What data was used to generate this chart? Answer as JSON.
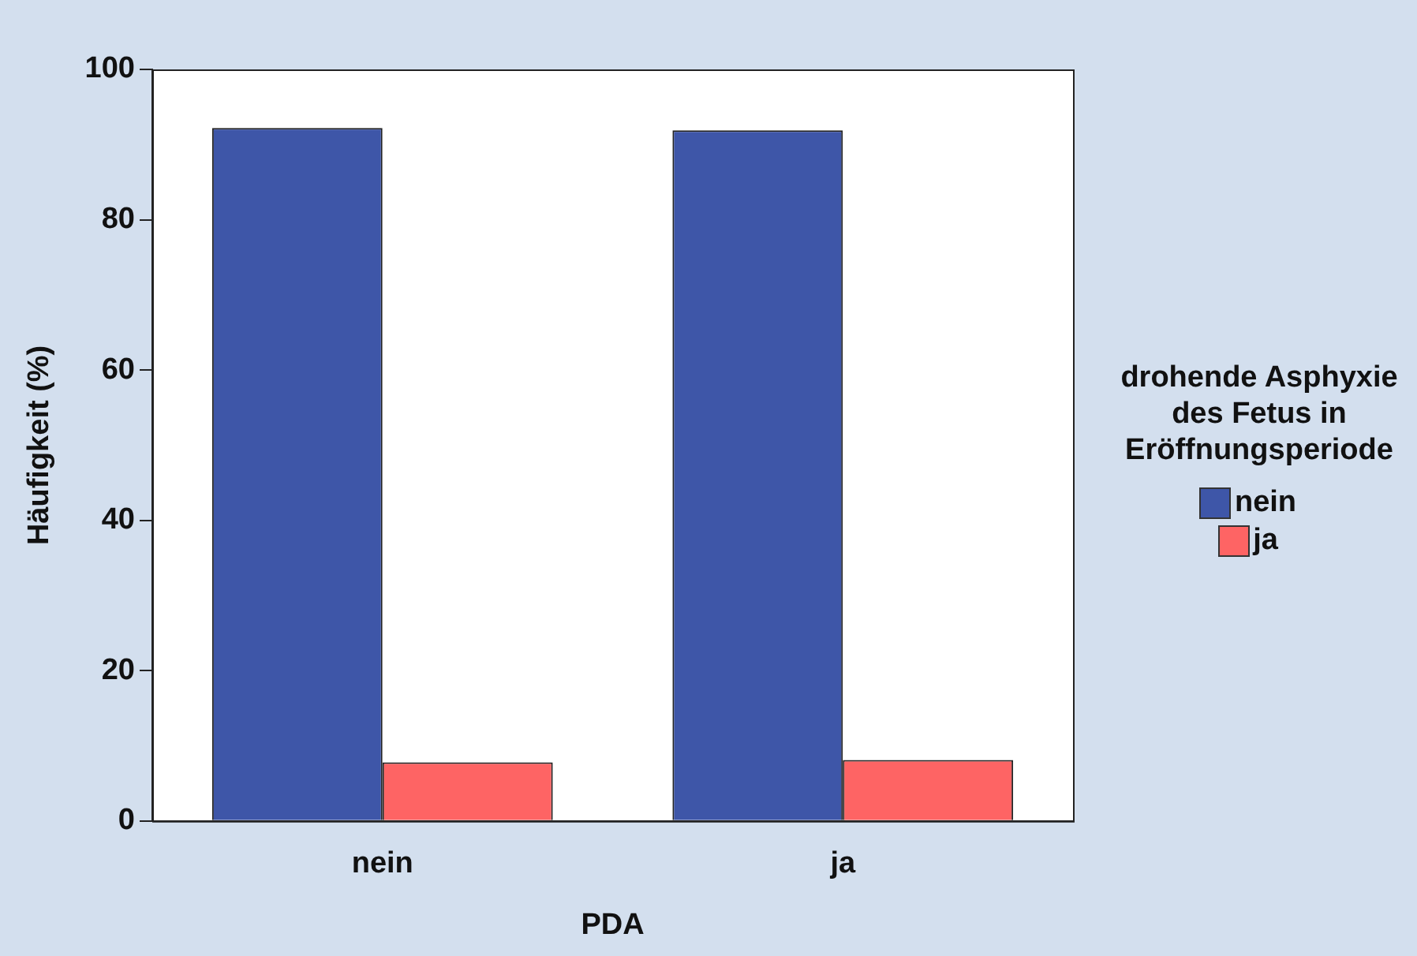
{
  "chart_data": {
    "type": "bar",
    "xlabel": "PDA",
    "ylabel": "Häufigkeit (%)",
    "legend_title": "drohende Asphyxie des Fetus in Eröffnungsperiode",
    "categories": [
      "nein",
      "ja"
    ],
    "series": [
      {
        "name": "nein",
        "color": "#3e56a8",
        "values": [
          92.2,
          91.9
        ]
      },
      {
        "name": "ja",
        "color": "#fe6464",
        "values": [
          7.8,
          8.1
        ]
      }
    ],
    "ylim": [
      0,
      100
    ],
    "yticks": [
      0,
      20,
      40,
      60,
      80,
      100
    ],
    "grid": false,
    "legend": "right"
  }
}
